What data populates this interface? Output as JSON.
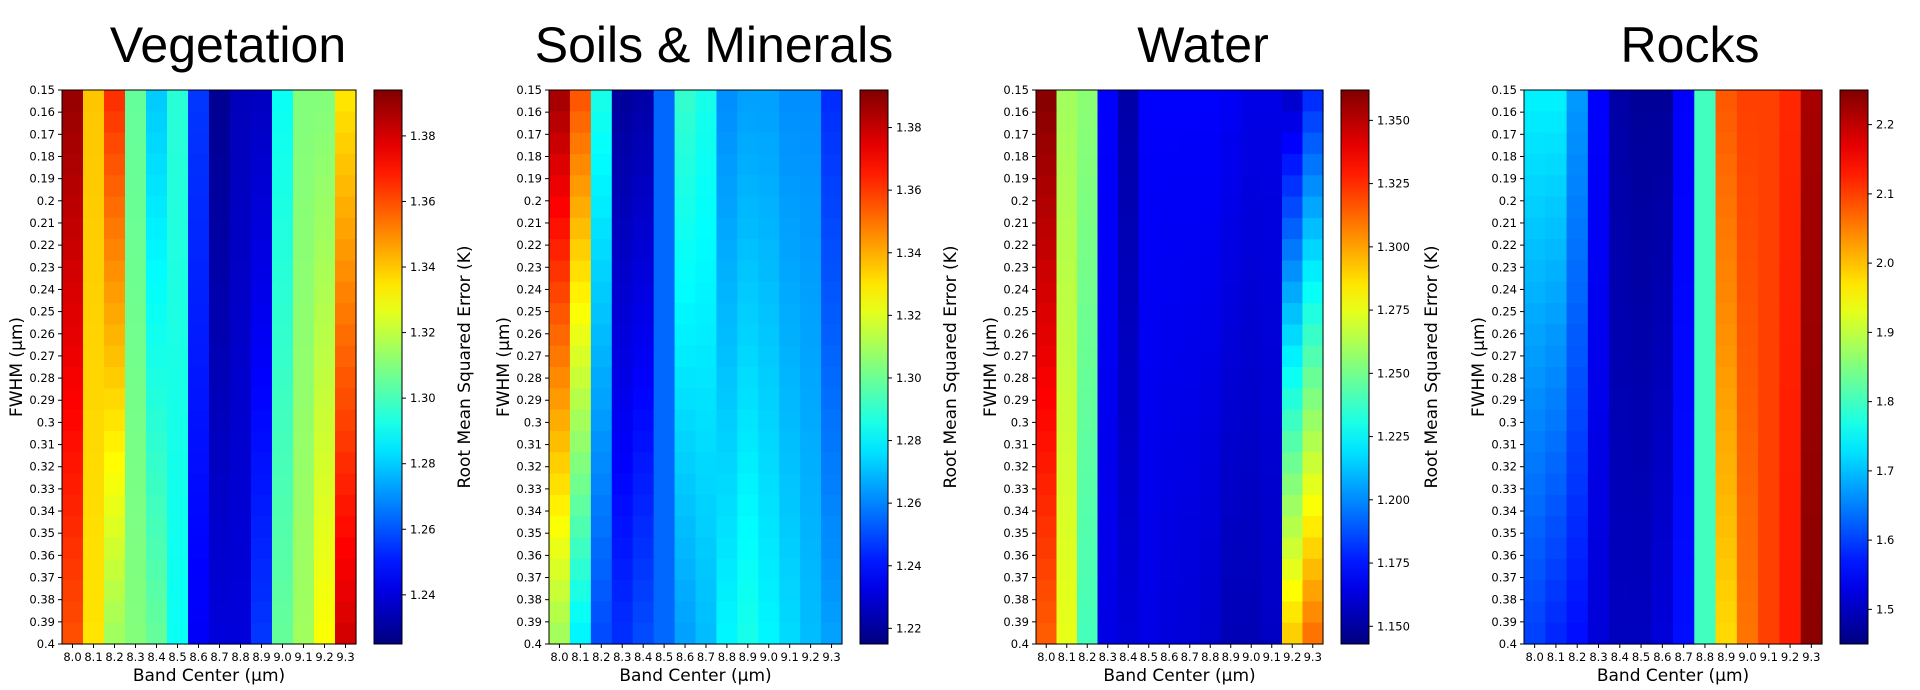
{
  "chart_data": [
    {
      "type": "heatmap",
      "title": "Vegetation",
      "xlabel": "Band Center (µm)",
      "ylabel": "FWHM (µm)",
      "colorbar_label": "Root Mean Squared Error (K)",
      "colormap": "jet",
      "x": [
        "8.0",
        "8.1",
        "8.2",
        "8.3",
        "8.4",
        "8.5",
        "8.6",
        "8.7",
        "8.8",
        "8.9",
        "9.0",
        "9.1",
        "9.2",
        "9.3"
      ],
      "y": [
        "0.15",
        "0.16",
        "0.17",
        "0.18",
        "0.19",
        "0.2",
        "0.21",
        "0.22",
        "0.23",
        "0.24",
        "0.25",
        "0.26",
        "0.27",
        "0.28",
        "0.29",
        "0.3",
        "0.31",
        "0.32",
        "0.33",
        "0.34",
        "0.35",
        "0.36",
        "0.37",
        "0.38",
        "0.39",
        "0.4"
      ],
      "value_range": [
        1.225,
        1.394
      ],
      "colorbar_ticks": [
        1.24,
        1.26,
        1.28,
        1.3,
        1.32,
        1.34,
        1.36,
        1.38
      ],
      "colorbar_tick_labels": [
        "1.24",
        "1.26",
        "1.28",
        "1.30",
        "1.32",
        "1.34",
        "1.36",
        "1.38"
      ],
      "column_values_top": [
        1.39,
        1.34,
        1.365,
        1.305,
        1.28,
        1.295,
        1.255,
        1.228,
        1.235,
        1.236,
        1.29,
        1.31,
        1.31,
        1.335
      ],
      "column_values_bottom": [
        1.36,
        1.335,
        1.315,
        1.31,
        1.305,
        1.29,
        1.245,
        1.24,
        1.24,
        1.255,
        1.305,
        1.315,
        1.33,
        1.38
      ]
    },
    {
      "type": "heatmap",
      "title": "Soils & Minerals",
      "xlabel": "Band Center (µm)",
      "ylabel": "FWHM (µm)",
      "colorbar_label": "Root Mean Squared Error (K)",
      "colormap": "jet",
      "x": [
        "8.0",
        "8.1",
        "8.2",
        "8.3",
        "8.4",
        "8.5",
        "8.6",
        "8.7",
        "8.8",
        "8.9",
        "9.0",
        "9.1",
        "9.2",
        "9.3"
      ],
      "y": [
        "0.15",
        "0.16",
        "0.17",
        "0.18",
        "0.19",
        "0.2",
        "0.21",
        "0.22",
        "0.23",
        "0.24",
        "0.25",
        "0.26",
        "0.27",
        "0.28",
        "0.29",
        "0.3",
        "0.31",
        "0.32",
        "0.33",
        "0.34",
        "0.35",
        "0.36",
        "0.37",
        "0.38",
        "0.39",
        "0.4"
      ],
      "value_range": [
        1.215,
        1.392
      ],
      "colorbar_ticks": [
        1.22,
        1.24,
        1.26,
        1.28,
        1.3,
        1.32,
        1.34,
        1.36,
        1.38
      ],
      "colorbar_tick_labels": [
        "1.22",
        "1.24",
        "1.26",
        "1.28",
        "1.30",
        "1.32",
        "1.34",
        "1.36",
        "1.38"
      ],
      "column_values_top": [
        1.385,
        1.355,
        1.285,
        1.22,
        1.222,
        1.255,
        1.29,
        1.285,
        1.262,
        1.265,
        1.265,
        1.262,
        1.262,
        1.245
      ],
      "column_values_bottom": [
        1.31,
        1.28,
        1.25,
        1.245,
        1.25,
        1.255,
        1.265,
        1.27,
        1.28,
        1.285,
        1.28,
        1.275,
        1.27,
        1.265
      ]
    },
    {
      "type": "heatmap",
      "title": "Water",
      "xlabel": "Band Center (µm)",
      "ylabel": "FWHM (µm)",
      "colorbar_label": "Root Mean Squared Error (K)",
      "colormap": "jet",
      "x": [
        "8.0",
        "8.1",
        "8.2",
        "8.3",
        "8.4",
        "8.5",
        "8.6",
        "8.7",
        "8.8",
        "8.9",
        "9.0",
        "9.1",
        "9.2",
        "9.3"
      ],
      "y": [
        "0.15",
        "0.16",
        "0.17",
        "0.18",
        "0.19",
        "0.2",
        "0.21",
        "0.22",
        "0.23",
        "0.24",
        "0.25",
        "0.26",
        "0.27",
        "0.28",
        "0.29",
        "0.3",
        "0.31",
        "0.32",
        "0.33",
        "0.34",
        "0.35",
        "0.36",
        "0.37",
        "0.38",
        "0.39",
        "0.4"
      ],
      "value_range": [
        1.143,
        1.362
      ],
      "colorbar_ticks": [
        1.15,
        1.175,
        1.2,
        1.225,
        1.25,
        1.275,
        1.3,
        1.325,
        1.35
      ],
      "colorbar_tick_labels": [
        "1.150",
        "1.175",
        "1.200",
        "1.225",
        "1.250",
        "1.275",
        "1.300",
        "1.325",
        "1.350"
      ],
      "column_values_top": [
        1.36,
        1.26,
        1.255,
        1.17,
        1.152,
        1.17,
        1.17,
        1.17,
        1.17,
        1.168,
        1.165,
        1.165,
        1.16,
        1.18
      ],
      "column_values_bottom": [
        1.315,
        1.275,
        1.24,
        1.165,
        1.162,
        1.165,
        1.163,
        1.162,
        1.16,
        1.155,
        1.155,
        1.158,
        1.29,
        1.31
      ]
    },
    {
      "type": "heatmap",
      "title": "Rocks",
      "xlabel": "Band Center (µm)",
      "ylabel": "FWHM (µm)",
      "colorbar_label": "Root Mean Squared Error (K)",
      "colormap": "jet",
      "x": [
        "8.0",
        "8.1",
        "8.2",
        "8.3",
        "8.4",
        "8.5",
        "8.6",
        "8.7",
        "8.8",
        "8.9",
        "9.0",
        "9.1",
        "9.2",
        "9.3"
      ],
      "y": [
        "0.15",
        "0.16",
        "0.17",
        "0.18",
        "0.19",
        "0.2",
        "0.21",
        "0.22",
        "0.23",
        "0.24",
        "0.25",
        "0.26",
        "0.27",
        "0.28",
        "0.29",
        "0.3",
        "0.31",
        "0.32",
        "0.33",
        "0.34",
        "0.35",
        "0.36",
        "0.37",
        "0.38",
        "0.39",
        "0.4"
      ],
      "value_range": [
        1.45,
        2.25
      ],
      "colorbar_ticks": [
        1.5,
        1.6,
        1.7,
        1.8,
        1.9,
        2.0,
        2.1,
        2.2
      ],
      "colorbar_tick_labels": [
        "1.5",
        "1.6",
        "1.7",
        "1.8",
        "1.9",
        "2.0",
        "2.1",
        "2.2"
      ],
      "column_values_top": [
        1.74,
        1.74,
        1.67,
        1.55,
        1.48,
        1.47,
        1.47,
        1.55,
        1.8,
        2.08,
        2.1,
        2.1,
        2.12,
        2.22
      ],
      "column_values_bottom": [
        1.6,
        1.58,
        1.56,
        1.52,
        1.5,
        1.5,
        1.52,
        1.56,
        1.8,
        1.98,
        2.06,
        2.1,
        2.13,
        2.24
      ]
    }
  ]
}
